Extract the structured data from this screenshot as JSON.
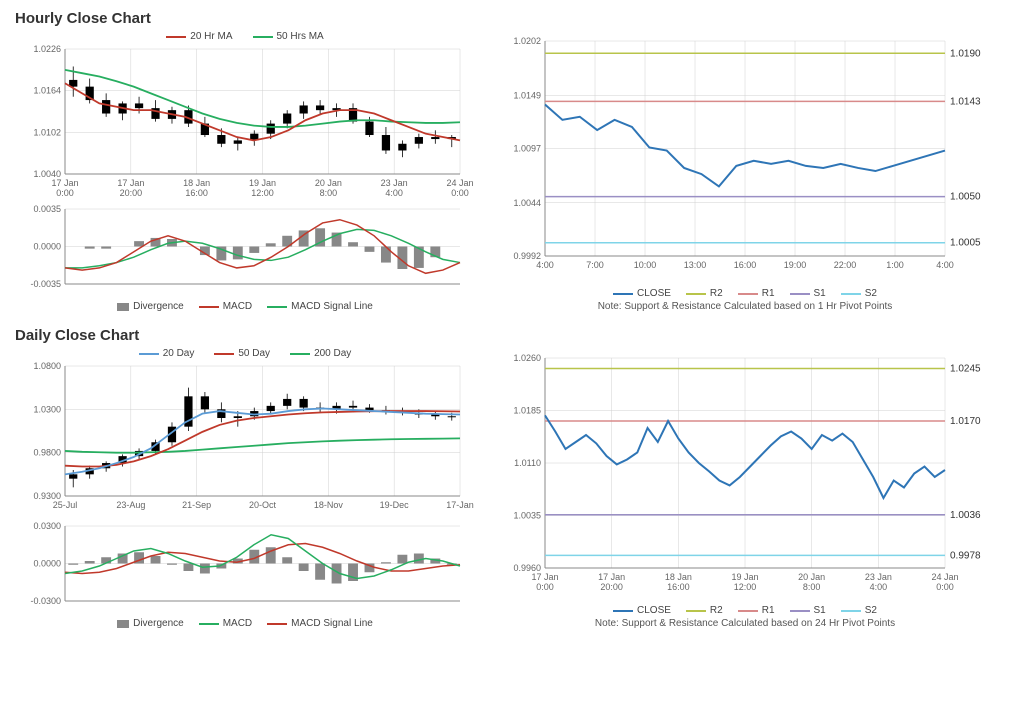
{
  "hourly": {
    "title": "Hourly Close Chart",
    "main": {
      "type": "candlestick_ma",
      "ylim": [
        1.004,
        1.0226
      ],
      "yticks": [
        1.004,
        1.0102,
        1.0164,
        1.0226
      ],
      "xticks": [
        "17 Jan\n0:00",
        "17 Jan\n20:00",
        "18 Jan\n16:00",
        "19 Jan\n12:00",
        "20 Jan\n8:00",
        "23 Jan\n4:00",
        "24 Jan\n0:00"
      ],
      "legend": [
        {
          "label": "20 Hr MA",
          "color": "#c0392b"
        },
        {
          "label": "50 Hrs MA",
          "color": "#27ae60"
        }
      ],
      "candle_color": "#000000",
      "ma20_color": "#c0392b",
      "ma50_color": "#27ae60",
      "ma20": [
        1.0175,
        1.016,
        1.0145,
        1.014,
        1.0135,
        1.0135,
        1.013,
        1.0125,
        1.0115,
        1.0105,
        1.0095,
        1.009,
        1.0095,
        1.0105,
        1.012,
        1.013,
        1.0135,
        1.0135,
        1.013,
        1.012,
        1.011,
        1.01,
        1.0095,
        1.009
      ],
      "ma50": [
        1.0195,
        1.019,
        1.0185,
        1.0178,
        1.017,
        1.016,
        1.015,
        1.014,
        1.013,
        1.0122,
        1.0116,
        1.0112,
        1.011,
        1.011,
        1.0112,
        1.0115,
        1.0118,
        1.012,
        1.012,
        1.0118,
        1.0117,
        1.0116,
        1.0116,
        1.0117
      ],
      "candles": [
        [
          1.018,
          1.02,
          1.0155,
          1.017
        ],
        [
          1.017,
          1.0182,
          1.0145,
          1.015
        ],
        [
          1.015,
          1.016,
          1.0125,
          1.013
        ],
        [
          1.013,
          1.0148,
          1.012,
          1.0145
        ],
        [
          1.0145,
          1.0155,
          1.013,
          1.0138
        ],
        [
          1.0138,
          1.015,
          1.0118,
          1.0122
        ],
        [
          1.0122,
          1.014,
          1.0115,
          1.0135
        ],
        [
          1.0135,
          1.0142,
          1.011,
          1.0115
        ],
        [
          1.0115,
          1.0125,
          1.0095,
          1.0098
        ],
        [
          1.0098,
          1.0108,
          1.008,
          1.0085
        ],
        [
          1.0085,
          1.0095,
          1.0075,
          1.009
        ],
        [
          1.009,
          1.0105,
          1.0082,
          1.01
        ],
        [
          1.01,
          1.012,
          1.0092,
          1.0115
        ],
        [
          1.0115,
          1.0135,
          1.0108,
          1.013
        ],
        [
          1.013,
          1.0148,
          1.0122,
          1.0142
        ],
        [
          1.0142,
          1.015,
          1.0128,
          1.0135
        ],
        [
          1.0135,
          1.0145,
          1.0125,
          1.0138
        ],
        [
          1.0138,
          1.0145,
          1.0115,
          1.0118
        ],
        [
          1.0118,
          1.0125,
          1.0095,
          1.0098
        ],
        [
          1.0098,
          1.011,
          1.007,
          1.0075
        ],
        [
          1.0075,
          1.009,
          1.0065,
          1.0085
        ],
        [
          1.0085,
          1.01,
          1.0078,
          1.0095
        ],
        [
          1.0095,
          1.0105,
          1.0085,
          1.0092
        ],
        [
          1.0092,
          1.0098,
          1.008,
          1.0095
        ]
      ]
    },
    "macd": {
      "ylim": [
        -0.0035,
        0.0035
      ],
      "yticks": [
        -0.0035,
        0.0,
        0.0035
      ],
      "legend": [
        {
          "label": "Divergence",
          "color": "#888888",
          "type": "bar"
        },
        {
          "label": "MACD",
          "color": "#c0392b",
          "type": "line"
        },
        {
          "label": "MACD Signal Line",
          "color": "#27ae60",
          "type": "line"
        }
      ],
      "macd_line": [
        -0.002,
        -0.0022,
        -0.002,
        -0.0015,
        -0.0005,
        0.0005,
        0.001,
        0.0005,
        -0.0005,
        -0.0015,
        -0.002,
        -0.0018,
        -0.001,
        0.0,
        0.0012,
        0.0022,
        0.0025,
        0.002,
        0.001,
        -0.0005,
        -0.0018,
        -0.0025,
        -0.0022,
        -0.0015
      ],
      "signal_line": [
        -0.002,
        -0.002,
        -0.0018,
        -0.0015,
        -0.001,
        -0.0003,
        0.0003,
        0.0005,
        0.0003,
        -0.0002,
        -0.0008,
        -0.0012,
        -0.0013,
        -0.001,
        -0.0003,
        0.0005,
        0.0012,
        0.0016,
        0.0015,
        0.001,
        0.0003,
        -0.0005,
        -0.0012,
        -0.0015
      ],
      "divergence": [
        0.0,
        -0.0002,
        -0.0002,
        0.0,
        0.0005,
        0.0008,
        0.0007,
        0.0,
        -0.0008,
        -0.0013,
        -0.0012,
        -0.0006,
        0.0003,
        0.001,
        0.0015,
        0.0017,
        0.0013,
        0.0004,
        -0.0005,
        -0.0015,
        -0.0021,
        -0.002,
        -0.001,
        0.0
      ]
    },
    "sr": {
      "ylim": [
        0.9992,
        1.0202
      ],
      "yticks": [
        0.9992,
        1.0044,
        1.0097,
        1.0149,
        1.0202
      ],
      "xticks": [
        "4:00",
        "7:00",
        "10:00",
        "13:00",
        "16:00",
        "19:00",
        "22:00",
        "1:00",
        "4:00"
      ],
      "levels": [
        {
          "name": "R2",
          "value": 1.019,
          "color": "#b8c44a"
        },
        {
          "name": "R1",
          "value": 1.0143,
          "color": "#d88a8a"
        },
        {
          "name": "S1",
          "value": 1.005,
          "color": "#9a8fc4"
        },
        {
          "name": "S2",
          "value": 1.0005,
          "color": "#7fd4e8"
        }
      ],
      "close_color": "#2e75b6",
      "close": [
        1.014,
        1.0125,
        1.0128,
        1.0115,
        1.0125,
        1.0118,
        1.0098,
        1.0095,
        1.0078,
        1.0072,
        1.006,
        1.008,
        1.0085,
        1.0082,
        1.0085,
        1.008,
        1.0078,
        1.0082,
        1.0078,
        1.0075,
        1.008,
        1.0085,
        1.009,
        1.0095
      ],
      "legend": [
        {
          "label": "CLOSE",
          "color": "#2e75b6"
        },
        {
          "label": "R2",
          "color": "#b8c44a"
        },
        {
          "label": "R1",
          "color": "#d88a8a"
        },
        {
          "label": "S1",
          "color": "#9a8fc4"
        },
        {
          "label": "S2",
          "color": "#7fd4e8"
        }
      ],
      "note": "Note: Support & Resistance Calculated based on 1 Hr Pivot Points"
    }
  },
  "daily": {
    "title": "Daily Close Chart",
    "main": {
      "type": "candlestick_ma",
      "ylim": [
        0.93,
        1.08
      ],
      "yticks": [
        0.93,
        0.98,
        1.03,
        1.08
      ],
      "xticks": [
        "25-Jul",
        "23-Aug",
        "21-Sep",
        "20-Oct",
        "18-Nov",
        "19-Dec",
        "17-Jan"
      ],
      "legend": [
        {
          "label": "20 Day",
          "color": "#5b9bd5"
        },
        {
          "label": "50 Day",
          "color": "#c0392b"
        },
        {
          "label": "200 Day",
          "color": "#27ae60"
        }
      ],
      "candle_color": "#000000",
      "ma20_color": "#5b9bd5",
      "ma50_color": "#c0392b",
      "ma200_color": "#27ae60",
      "ma20": [
        0.955,
        0.958,
        0.962,
        0.968,
        0.975,
        0.985,
        1.0,
        1.015,
        1.025,
        1.028,
        1.026,
        1.024,
        1.025,
        1.028,
        1.03,
        1.031,
        1.03,
        1.029,
        1.028,
        1.027,
        1.026,
        1.025,
        1.0245,
        1.024
      ],
      "ma50": [
        0.965,
        0.964,
        0.964,
        0.966,
        0.97,
        0.976,
        0.984,
        0.994,
        1.004,
        1.012,
        1.017,
        1.02,
        1.022,
        1.024,
        1.0255,
        1.0265,
        1.027,
        1.0275,
        1.0278,
        1.028,
        1.028,
        1.028,
        1.0278,
        1.0275
      ],
      "ma200": [
        0.982,
        0.981,
        0.9805,
        0.98,
        0.98,
        0.9805,
        0.981,
        0.982,
        0.9835,
        0.985,
        0.9865,
        0.988,
        0.9895,
        0.991,
        0.992,
        0.993,
        0.9938,
        0.9945,
        0.995,
        0.9955,
        0.9958,
        0.996,
        0.9962,
        0.9965
      ],
      "candles": [
        [
          0.95,
          0.96,
          0.94,
          0.955
        ],
        [
          0.955,
          0.965,
          0.95,
          0.962
        ],
        [
          0.962,
          0.97,
          0.958,
          0.968
        ],
        [
          0.968,
          0.978,
          0.964,
          0.976
        ],
        [
          0.976,
          0.985,
          0.972,
          0.982
        ],
        [
          0.982,
          0.995,
          0.978,
          0.992
        ],
        [
          0.992,
          1.015,
          0.988,
          1.01
        ],
        [
          1.01,
          1.055,
          1.005,
          1.045
        ],
        [
          1.045,
          1.05,
          1.025,
          1.03
        ],
        [
          1.03,
          1.038,
          1.015,
          1.02
        ],
        [
          1.02,
          1.028,
          1.01,
          1.022
        ],
        [
          1.022,
          1.032,
          1.018,
          1.028
        ],
        [
          1.028,
          1.038,
          1.024,
          1.034
        ],
        [
          1.034,
          1.048,
          1.03,
          1.042
        ],
        [
          1.042,
          1.045,
          1.028,
          1.032
        ],
        [
          1.032,
          1.038,
          1.026,
          1.03
        ],
        [
          1.03,
          1.038,
          1.025,
          1.034
        ],
        [
          1.034,
          1.04,
          1.028,
          1.032
        ],
        [
          1.032,
          1.036,
          1.026,
          1.029
        ],
        [
          1.029,
          1.034,
          1.024,
          1.028
        ],
        [
          1.028,
          1.032,
          1.023,
          1.026
        ],
        [
          1.026,
          1.03,
          1.02,
          1.024
        ],
        [
          1.024,
          1.028,
          1.018,
          1.022
        ],
        [
          1.022,
          1.026,
          1.017,
          1.021
        ]
      ]
    },
    "macd": {
      "ylim": [
        -0.03,
        0.03
      ],
      "yticks": [
        -0.03,
        0.0,
        0.03
      ],
      "legend": [
        {
          "label": "Divergence",
          "color": "#888888",
          "type": "bar"
        },
        {
          "label": "MACD",
          "color": "#27ae60",
          "type": "line"
        },
        {
          "label": "MACD Signal Line",
          "color": "#c0392b",
          "type": "line"
        }
      ],
      "macd_line": [
        -0.008,
        -0.006,
        -0.002,
        0.004,
        0.01,
        0.012,
        0.008,
        0.002,
        -0.003,
        -0.002,
        0.005,
        0.015,
        0.023,
        0.02,
        0.01,
        0.0,
        -0.008,
        -0.012,
        -0.01,
        -0.005,
        0.001,
        0.004,
        0.002,
        -0.002
      ],
      "signal_line": [
        -0.007,
        -0.008,
        -0.007,
        -0.004,
        0.001,
        0.006,
        0.009,
        0.008,
        0.005,
        0.002,
        0.001,
        0.004,
        0.01,
        0.015,
        0.016,
        0.013,
        0.008,
        0.002,
        -0.003,
        -0.006,
        -0.006,
        -0.004,
        -0.002,
        -0.001
      ],
      "divergence": [
        -0.001,
        0.002,
        0.005,
        0.008,
        0.009,
        0.006,
        -0.001,
        -0.006,
        -0.008,
        -0.004,
        0.004,
        0.011,
        0.013,
        0.005,
        -0.006,
        -0.013,
        -0.016,
        -0.014,
        -0.007,
        0.001,
        0.007,
        0.008,
        0.004,
        -0.001
      ]
    },
    "sr": {
      "ylim": [
        0.996,
        1.026
      ],
      "yticks": [
        0.996,
        1.0035,
        1.011,
        1.0185,
        1.026
      ],
      "xticks": [
        "17 Jan\n0:00",
        "17 Jan\n20:00",
        "18 Jan\n16:00",
        "19 Jan\n12:00",
        "20 Jan\n8:00",
        "23 Jan\n4:00",
        "24 Jan\n0:00"
      ],
      "levels": [
        {
          "name": "R2",
          "value": 1.0245,
          "color": "#b8c44a"
        },
        {
          "name": "R1",
          "value": 1.017,
          "color": "#d88a8a"
        },
        {
          "name": "S1",
          "value": 1.0036,
          "color": "#9a8fc4"
        },
        {
          "name": "S2",
          "value": 0.9978,
          "color": "#7fd4e8"
        }
      ],
      "close_color": "#2e75b6",
      "close": [
        1.0178,
        1.0155,
        1.013,
        1.014,
        1.015,
        1.0138,
        1.012,
        1.0108,
        1.0115,
        1.0125,
        1.016,
        1.014,
        1.017,
        1.0145,
        1.0125,
        1.011,
        1.0098,
        1.0085,
        1.0078,
        1.009,
        1.0105,
        1.012,
        1.0135,
        1.0148,
        1.0155,
        1.0145,
        1.013,
        1.015,
        1.0142,
        1.0152,
        1.014,
        1.0115,
        1.009,
        1.006,
        1.0085,
        1.0075,
        1.0095,
        1.0105,
        1.009,
        1.01
      ],
      "legend": [
        {
          "label": "CLOSE",
          "color": "#2e75b6"
        },
        {
          "label": "R2",
          "color": "#b8c44a"
        },
        {
          "label": "R1",
          "color": "#d88a8a"
        },
        {
          "label": "S1",
          "color": "#9a8fc4"
        },
        {
          "label": "S2",
          "color": "#7fd4e8"
        }
      ],
      "note": "Note: Support & Resistance Calculated based on 24 Hr Pivot Points"
    }
  },
  "chart_style": {
    "grid_color": "#d0d0d0",
    "axis_color": "#888888",
    "text_color": "#666666",
    "bg_color": "#ffffff"
  }
}
